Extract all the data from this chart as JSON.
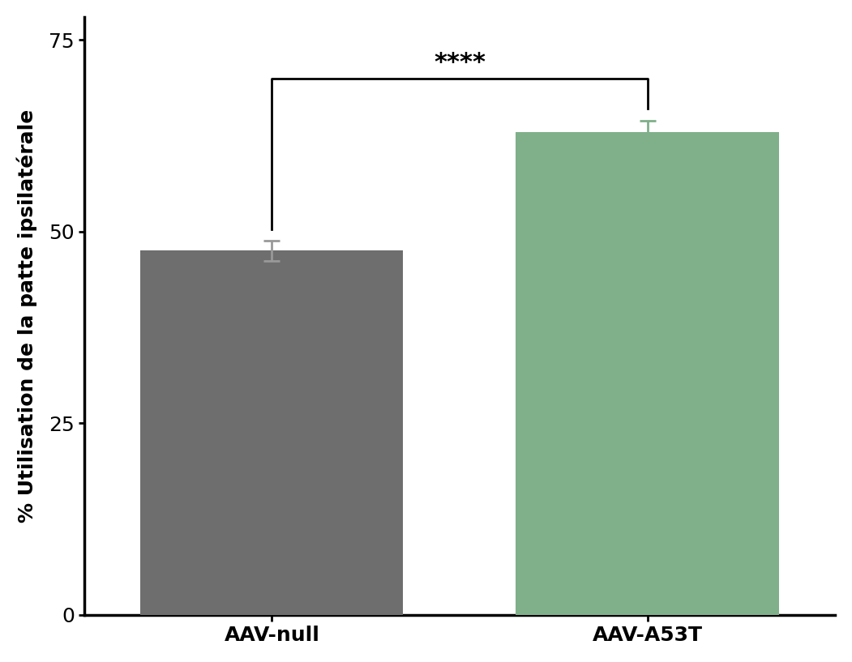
{
  "categories": [
    "AAV-null",
    "AAV-A53T"
  ],
  "values": [
    47.5,
    63.0
  ],
  "errors": [
    1.3,
    1.5
  ],
  "bar_colors": [
    "#6e6e6e",
    "#7fb08a"
  ],
  "error_colors": [
    "#999999",
    "#7fb08a"
  ],
  "bar_width": 0.35,
  "bar_positions": [
    0.25,
    0.75
  ],
  "ylabel": "% Utilisation de la patte ipsilatérale",
  "ylim": [
    0,
    78
  ],
  "yticks": [
    0,
    25,
    50,
    75
  ],
  "significance_text": "****",
  "background_color": "#ffffff",
  "ylabel_fontsize": 18,
  "tick_fontsize": 18,
  "xlabel_fontsize": 18,
  "sig_fontsize": 22,
  "spine_linewidth": 2.5
}
